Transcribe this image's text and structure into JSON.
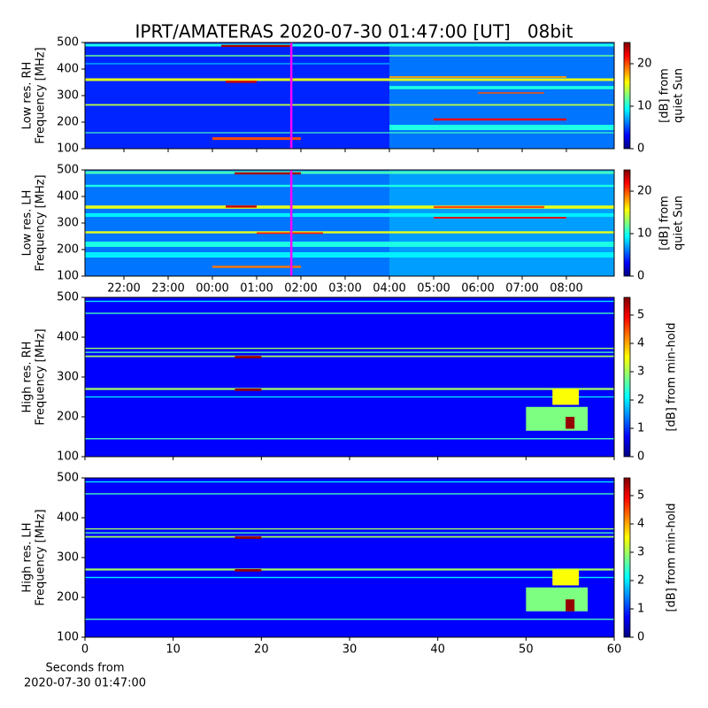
{
  "chart_data": {
    "type": "spectrogram",
    "title": "IPRT/AMATERAS 2020-07-30 01:47:00 [UT]   08bit",
    "xlabel": [
      "Seconds from",
      "2020-07-30 01:47:00"
    ],
    "panels": [
      {
        "ylabel": [
          "Low res. RH",
          "Frequency [MHz]"
        ],
        "ylim": [
          100,
          500
        ],
        "yticks": [
          100,
          200,
          300,
          400,
          500
        ],
        "xlim": [
          21.12,
          33.08
        ],
        "xticks": [
          22,
          23,
          24,
          25,
          26,
          27,
          28,
          29,
          30,
          31,
          32
        ],
        "clim": [
          0,
          25
        ],
        "cticks": [
          0,
          10,
          20
        ],
        "clabel": [
          "[dB] from",
          "quiet Sun"
        ],
        "background": 4,
        "marker": {
          "x": 25.783,
          "color": "#ff00ff"
        },
        "features": [
          {
            "f": 300,
            "w": 400,
            "x": [
              28,
              33.08
            ],
            "z": 6
          },
          {
            "f": 490,
            "w": 10,
            "x": [
              21.12,
              33.08
            ],
            "z": 10
          },
          {
            "f": 487,
            "w": 8,
            "x": [
              24.2,
              25.8
            ],
            "z": 24
          },
          {
            "f": 450,
            "w": 5,
            "x": [
              21.12,
              33.08
            ],
            "z": 12
          },
          {
            "f": 420,
            "w": 4,
            "x": [
              21.12,
              28
            ],
            "z": 8
          },
          {
            "f": 360,
            "w": 10,
            "x": [
              21.12,
              33.08
            ],
            "z": 15
          },
          {
            "f": 352,
            "w": 8,
            "x": [
              24.3,
              25
            ],
            "z": 23
          },
          {
            "f": 330,
            "w": 12,
            "x": [
              28,
              33.08
            ],
            "z": 10
          },
          {
            "f": 265,
            "w": 6,
            "x": [
              21.12,
              33.08
            ],
            "z": 14
          },
          {
            "f": 210,
            "w": 8,
            "x": [
              29,
              32
            ],
            "z": 22
          },
          {
            "f": 180,
            "w": 20,
            "x": [
              28,
              33.08
            ],
            "z": 10
          },
          {
            "f": 160,
            "w": 4,
            "x": [
              21.12,
              33.08
            ],
            "z": 11
          },
          {
            "f": 138,
            "w": 10,
            "x": [
              24,
              26
            ],
            "z": 20
          },
          {
            "f": 310,
            "w": 5,
            "x": [
              30,
              31.5
            ],
            "z": 20
          },
          {
            "f": 370,
            "w": 6,
            "x": [
              28,
              32
            ],
            "z": 18
          }
        ]
      },
      {
        "ylabel": [
          "Low res. LH",
          "Frequency [MHz]"
        ],
        "ylim": [
          100,
          500
        ],
        "yticks": [
          100,
          200,
          300,
          400,
          500
        ],
        "xlim": [
          21.12,
          33.08
        ],
        "xticks": [
          {
            "value": 22,
            "label": "22:00"
          },
          {
            "value": 23,
            "label": "23:00"
          },
          {
            "value": 24,
            "label": "00:00"
          },
          {
            "value": 25,
            "label": "01:00"
          },
          {
            "value": 26,
            "label": "02:00"
          },
          {
            "value": 27,
            "label": "03:00"
          },
          {
            "value": 28,
            "label": "04:00"
          },
          {
            "value": 29,
            "label": "05:00"
          },
          {
            "value": 30,
            "label": "06:00"
          },
          {
            "value": 31,
            "label": "07:00"
          },
          {
            "value": 32,
            "label": "08:00"
          }
        ],
        "clim": [
          0,
          25
        ],
        "cticks": [
          0,
          10,
          20
        ],
        "clabel": [
          "[dB] from",
          "quiet Sun"
        ],
        "background": 6,
        "marker": {
          "x": 25.783,
          "color": "#ff00ff"
        },
        "features": [
          {
            "f": 300,
            "w": 400,
            "x": [
              28,
              33.08
            ],
            "z": 7
          },
          {
            "f": 490,
            "w": 10,
            "x": [
              21.12,
              33.08
            ],
            "z": 11
          },
          {
            "f": 487,
            "w": 8,
            "x": [
              24.5,
              26
            ],
            "z": 24
          },
          {
            "f": 440,
            "w": 8,
            "x": [
              21.12,
              33.08
            ],
            "z": 10
          },
          {
            "f": 360,
            "w": 12,
            "x": [
              21.12,
              33.08
            ],
            "z": 15
          },
          {
            "f": 362,
            "w": 8,
            "x": [
              24.3,
              25
            ],
            "z": 23
          },
          {
            "f": 330,
            "w": 14,
            "x": [
              21.12,
              33.08
            ],
            "z": 9
          },
          {
            "f": 320,
            "w": 6,
            "x": [
              29,
              32
            ],
            "z": 22
          },
          {
            "f": 265,
            "w": 8,
            "x": [
              21.12,
              33.08
            ],
            "z": 15
          },
          {
            "f": 262,
            "w": 6,
            "x": [
              25,
              26.5
            ],
            "z": 21
          },
          {
            "f": 220,
            "w": 20,
            "x": [
              21.12,
              33.08
            ],
            "z": 10
          },
          {
            "f": 180,
            "w": 20,
            "x": [
              21.12,
              33.08
            ],
            "z": 9
          },
          {
            "f": 135,
            "w": 8,
            "x": [
              24,
              26
            ],
            "z": 19
          },
          {
            "f": 360,
            "w": 8,
            "x": [
              29,
              31.5
            ],
            "z": 20
          }
        ]
      },
      {
        "ylabel": [
          "High res. RH",
          "Frequency [MHz]"
        ],
        "ylim": [
          100,
          500
        ],
        "yticks": [
          100,
          200,
          300,
          400,
          500
        ],
        "xlim": [
          0,
          60
        ],
        "xticks": [
          0,
          10,
          20,
          30,
          40,
          50,
          60
        ],
        "clim": [
          0,
          5.625
        ],
        "cticks": [
          0,
          1,
          2,
          3,
          4,
          5
        ],
        "clabel": [
          "[dB] from min-hold"
        ],
        "background": 0.7,
        "features": [
          {
            "f": 490,
            "w": 3,
            "x": [
              0,
              60
            ],
            "z": 2
          },
          {
            "f": 460,
            "w": 3,
            "x": [
              0,
              60
            ],
            "z": 2.5
          },
          {
            "f": 372,
            "w": 3,
            "x": [
              0,
              60
            ],
            "z": 3
          },
          {
            "f": 362,
            "w": 3,
            "x": [
              0,
              60
            ],
            "z": 2.5
          },
          {
            "f": 352,
            "w": 4,
            "x": [
              0,
              60
            ],
            "z": 3
          },
          {
            "f": 350,
            "w": 6,
            "x": [
              17,
              20
            ],
            "z": 5.5
          },
          {
            "f": 270,
            "w": 5,
            "x": [
              0,
              60
            ],
            "z": 3
          },
          {
            "f": 268,
            "w": 6,
            "x": [
              17,
              20
            ],
            "z": 5.5
          },
          {
            "f": 250,
            "w": 3,
            "x": [
              0,
              60
            ],
            "z": 2
          },
          {
            "f": 145,
            "w": 3,
            "x": [
              0,
              60
            ],
            "z": 2.5
          },
          {
            "f": 195,
            "w": 60,
            "x": [
              50,
              57
            ],
            "z": 2.8
          },
          {
            "f": 250,
            "w": 40,
            "x": [
              53,
              56
            ],
            "z": 3.5
          },
          {
            "f": 185,
            "w": 30,
            "x": [
              54.5,
              55.5
            ],
            "z": 5.5
          }
        ]
      },
      {
        "ylabel": [
          "High res. LH",
          "Frequency [MHz]"
        ],
        "ylim": [
          100,
          500
        ],
        "yticks": [
          100,
          200,
          300,
          400,
          500
        ],
        "xlim": [
          0,
          60
        ],
        "xticks": [
          0,
          10,
          20,
          30,
          40,
          50,
          60
        ],
        "clim": [
          0,
          5.625
        ],
        "cticks": [
          0,
          1,
          2,
          3,
          4,
          5
        ],
        "clabel": [
          "[dB] from min-hold"
        ],
        "background": 0.7,
        "features": [
          {
            "f": 490,
            "w": 3,
            "x": [
              0,
              60
            ],
            "z": 2
          },
          {
            "f": 460,
            "w": 3,
            "x": [
              0,
              60
            ],
            "z": 2.5
          },
          {
            "f": 372,
            "w": 3,
            "x": [
              0,
              60
            ],
            "z": 3
          },
          {
            "f": 362,
            "w": 3,
            "x": [
              0,
              60
            ],
            "z": 2.5
          },
          {
            "f": 352,
            "w": 4,
            "x": [
              0,
              60
            ],
            "z": 3
          },
          {
            "f": 350,
            "w": 6,
            "x": [
              17,
              20
            ],
            "z": 5.5
          },
          {
            "f": 270,
            "w": 5,
            "x": [
              0,
              60
            ],
            "z": 3
          },
          {
            "f": 268,
            "w": 6,
            "x": [
              17,
              20
            ],
            "z": 5.5
          },
          {
            "f": 250,
            "w": 3,
            "x": [
              0,
              60
            ],
            "z": 2
          },
          {
            "f": 145,
            "w": 3,
            "x": [
              0,
              60
            ],
            "z": 2.5
          },
          {
            "f": 195,
            "w": 60,
            "x": [
              50,
              57
            ],
            "z": 2.8
          },
          {
            "f": 250,
            "w": 40,
            "x": [
              53,
              56
            ],
            "z": 3.5
          },
          {
            "f": 180,
            "w": 30,
            "x": [
              54.5,
              55.5
            ],
            "z": 5.5
          }
        ]
      }
    ]
  }
}
